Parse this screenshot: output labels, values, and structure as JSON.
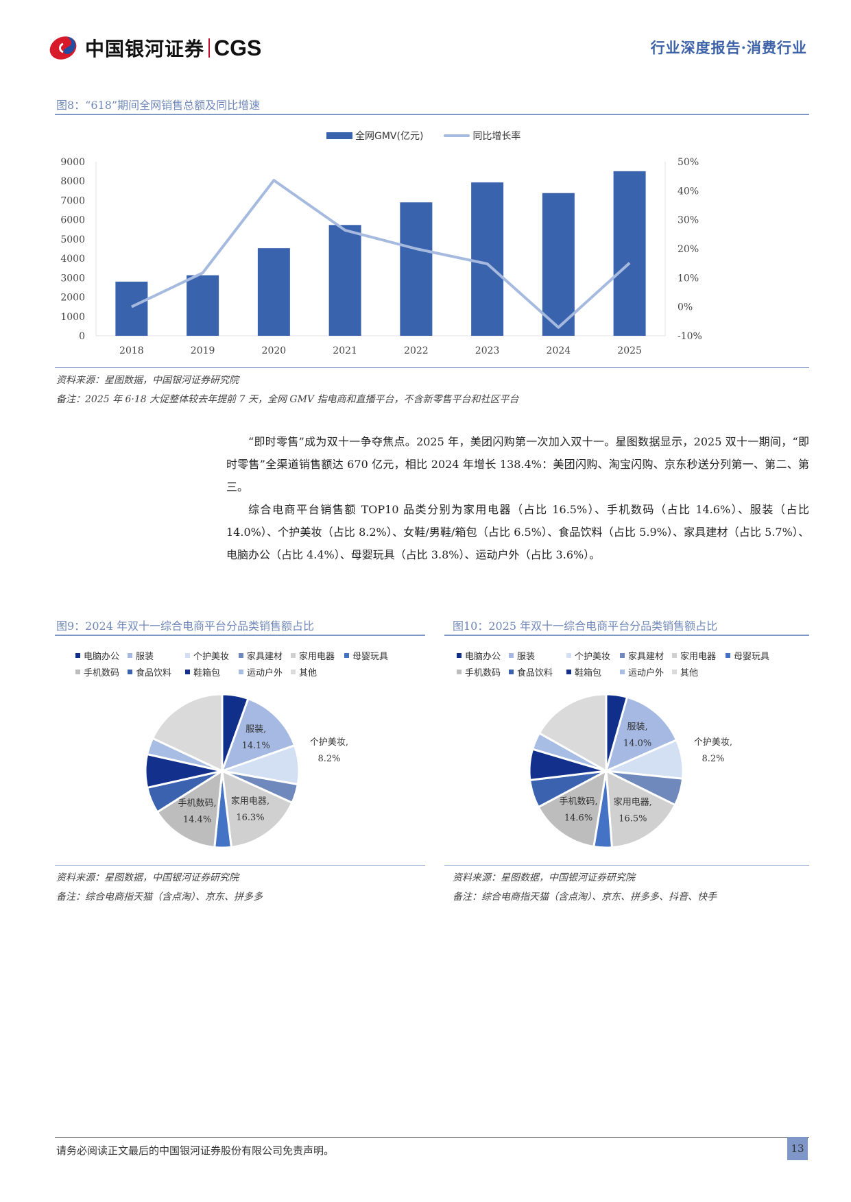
{
  "header": {
    "brand_cn": "中国银河证券",
    "brand_en": "CGS",
    "report_tag": "行业深度报告·消费行业"
  },
  "figure8": {
    "title": "图8：“618”期间全网销售总额及同比增速",
    "source": "资料来源：星图数据，中国银河证券研究院",
    "note": "备注：2025 年 6·18 大促整体较去年提前 7 天，全网 GMV 指电商和直播平台，不含新零售平台和社区平台"
  },
  "body": {
    "paragraph1": "“即时零售”成为双十一争夺焦点。2025 年，美团闪购第一次加入双十一。星图数据显示，2025 双十一期间，“即时零售”全渠道销售额达 670 亿元，相比 2024 年增长 138.4%：美团闪购、淘宝闪购、京东秒送分列第一、第二、第三。",
    "paragraph2": "综合电商平台销售额 TOP10 品类分别为家用电器（占比 16.5%）、手机数码（占比 14.6%）、服装（占比 14.0%）、个护美妆（占比 8.2%）、女鞋/男鞋/箱包（占比 6.5%）、食品饮料（占比 5.9%）、家具建材（占比 5.7%）、电脑办公（占比 4.4%）、母婴玩具（占比 3.8%）、运动户外（占比 3.6%）。"
  },
  "figure9": {
    "title": "图9：2024 年双十一综合电商平台分品类销售额占比",
    "source": "资料来源：星图数据，中国银河证券研究院",
    "note": "备注：综合电商指天猫（含点淘）、京东、拼多多"
  },
  "figure10": {
    "title": "图10：2025 年双十一综合电商平台分品类销售额占比",
    "source": "资料来源：星图数据，中国银河证券研究院",
    "note": "备注：综合电商指天猫（含点淘）、京东、拼多多、抖音、快手"
  },
  "footer": {
    "disclaimer": "请务必阅读正文最后的中国银河证券股份有限公司免责声明。",
    "page_number": "13"
  },
  "colors": {
    "brand_blue": "#3d62a8",
    "bar": "#3a63ad",
    "line": "#a6badf",
    "rule": "#7f97c4"
  },
  "chart_data": [
    {
      "type": "bar",
      "title": "“618”期间全网销售总额及同比增速",
      "categories": [
        "2018",
        "2019",
        "2020",
        "2021",
        "2022",
        "2023",
        "2024",
        "2025"
      ],
      "series": [
        {
          "name": "全网GMV(亿元)",
          "type": "bar",
          "axis": "left",
          "values": [
            2800,
            3130,
            4530,
            5730,
            6900,
            7930,
            7380,
            8510
          ]
        },
        {
          "name": "同比增长率",
          "type": "line",
          "axis": "right",
          "values": [
            0.0,
            11.7,
            43.6,
            26.4,
            20.0,
            14.8,
            -7.1,
            15.1
          ],
          "unit": "%"
        }
      ],
      "legend": [
        "全网GMV(亿元)",
        "同比增长率"
      ],
      "legend_position": "top",
      "ylim_left": [
        0,
        9000
      ],
      "yticks_left": [
        "0",
        "1000",
        "2000",
        "3000",
        "4000",
        "5000",
        "6000",
        "7000",
        "8000",
        "9000"
      ],
      "ylim_right": [
        -10,
        50
      ],
      "yticks_right": [
        "-10%",
        "0%",
        "10%",
        "20%",
        "30%",
        "40%",
        "50%"
      ],
      "xlabel": "",
      "ylabel": "",
      "grid": false
    },
    {
      "type": "pie",
      "title": "2024 年双十一综合电商平台分品类销售额占比",
      "categories": [
        "电脑办公",
        "服装",
        "个护美妆",
        "家具建材",
        "家用电器",
        "母婴玩具",
        "手机数码",
        "食品饮料",
        "鞋箱包",
        "运动户外",
        "其他"
      ],
      "values": [
        5.5,
        14.1,
        8.2,
        4.0,
        16.3,
        3.5,
        14.4,
        5.5,
        7.0,
        3.5,
        18.0
      ],
      "labeled": {
        "服装": "14.1%",
        "个护美妆": "8.2%",
        "家用电器": "16.3%",
        "手机数码": "14.4%"
      },
      "colors": [
        "#0f2f8a",
        "#a5b9e2",
        "#d3dff2",
        "#6f89bd",
        "#d0d0d0",
        "#4472c4",
        "#bdbdbd",
        "#3a62ae",
        "#13318c",
        "#a8bde4",
        "#dadada"
      ],
      "legend_position": "top"
    },
    {
      "type": "pie",
      "title": "2025 年双十一综合电商平台分品类销售额占比",
      "categories": [
        "电脑办公",
        "服装",
        "个护美妆",
        "家具建材",
        "家用电器",
        "母婴玩具",
        "手机数码",
        "食品饮料",
        "鞋箱包",
        "运动户外",
        "其他"
      ],
      "values": [
        4.4,
        14.0,
        8.2,
        5.7,
        16.5,
        3.8,
        14.6,
        5.9,
        6.5,
        3.6,
        16.8
      ],
      "labeled": {
        "服装": "14.0%",
        "个护美妆": "8.2%",
        "家用电器": "16.5%",
        "手机数码": "14.6%"
      },
      "colors": [
        "#0f2f8a",
        "#a5b9e2",
        "#d3dff2",
        "#6f89bd",
        "#d0d0d0",
        "#4472c4",
        "#bdbdbd",
        "#3a62ae",
        "#13318c",
        "#a8bde4",
        "#dadada"
      ],
      "legend_position": "top"
    }
  ]
}
